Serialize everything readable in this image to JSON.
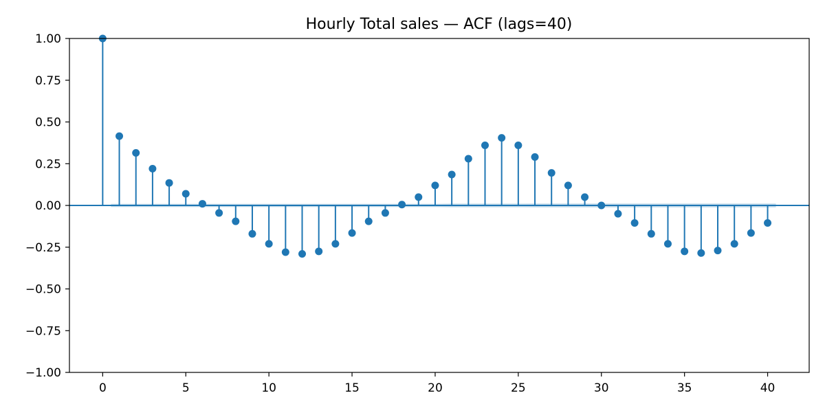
{
  "chart_data": {
    "type": "stem",
    "title": "Hourly Total sales — ACF (lags=40)",
    "xlabel": "",
    "ylabel": "",
    "xlim": [
      -2,
      42.5
    ],
    "ylim": [
      -1.0,
      1.0
    ],
    "x_ticks": [
      0,
      5,
      10,
      15,
      20,
      25,
      30,
      35,
      40
    ],
    "x_tick_labels": [
      "0",
      "5",
      "10",
      "15",
      "20",
      "25",
      "30",
      "35",
      "40"
    ],
    "y_ticks": [
      1.0,
      0.75,
      0.5,
      0.25,
      0.0,
      -0.25,
      -0.5,
      -0.75,
      -1.0
    ],
    "y_tick_labels": [
      "1.00",
      "0.75",
      "0.50",
      "0.25",
      "0.00",
      "−0.25",
      "−0.50",
      "−0.75",
      "−1.00"
    ],
    "grid": false,
    "lags": [
      0,
      1,
      2,
      3,
      4,
      5,
      6,
      7,
      8,
      9,
      10,
      11,
      12,
      13,
      14,
      15,
      16,
      17,
      18,
      19,
      20,
      21,
      22,
      23,
      24,
      25,
      26,
      27,
      28,
      29,
      30,
      31,
      32,
      33,
      34,
      35,
      36,
      37,
      38,
      39,
      40
    ],
    "values": [
      1.0,
      0.415,
      0.315,
      0.22,
      0.135,
      0.07,
      0.01,
      -0.045,
      -0.095,
      -0.17,
      -0.23,
      -0.28,
      -0.29,
      -0.275,
      -0.23,
      -0.165,
      -0.095,
      -0.045,
      0.005,
      0.05,
      0.12,
      0.185,
      0.28,
      0.36,
      0.405,
      0.36,
      0.29,
      0.195,
      0.12,
      0.05,
      0.0,
      -0.05,
      -0.105,
      -0.17,
      -0.23,
      -0.275,
      -0.285,
      -0.27,
      -0.23,
      -0.165,
      -0.105
    ],
    "confidence_band": {
      "lower": [
        -0.01,
        -0.01,
        -0.01,
        -0.01,
        -0.01,
        -0.01,
        -0.01,
        -0.01,
        -0.01,
        -0.01,
        -0.01,
        -0.01,
        -0.01,
        -0.01,
        -0.01,
        -0.01,
        -0.01,
        -0.01,
        -0.01,
        -0.01,
        -0.01,
        -0.011,
        -0.011,
        -0.011,
        -0.011,
        -0.011,
        -0.012,
        -0.012,
        -0.012,
        -0.012,
        -0.012,
        -0.012,
        -0.012,
        -0.012,
        -0.012,
        -0.012,
        -0.012,
        -0.012,
        -0.012,
        -0.012,
        -0.012
      ],
      "upper": [
        0.01,
        0.01,
        0.01,
        0.01,
        0.01,
        0.01,
        0.01,
        0.01,
        0.01,
        0.01,
        0.01,
        0.01,
        0.01,
        0.01,
        0.01,
        0.01,
        0.01,
        0.01,
        0.01,
        0.01,
        0.01,
        0.011,
        0.011,
        0.011,
        0.011,
        0.011,
        0.012,
        0.012,
        0.012,
        0.012,
        0.012,
        0.012,
        0.012,
        0.012,
        0.012,
        0.012,
        0.012,
        0.012,
        0.012,
        0.012,
        0.012
      ]
    },
    "colors": {
      "stem": "#1f77b4",
      "marker": "#1f77b4",
      "zero_line": "#1f77b4",
      "band": "#1f77b4",
      "axes": "#000000"
    }
  }
}
